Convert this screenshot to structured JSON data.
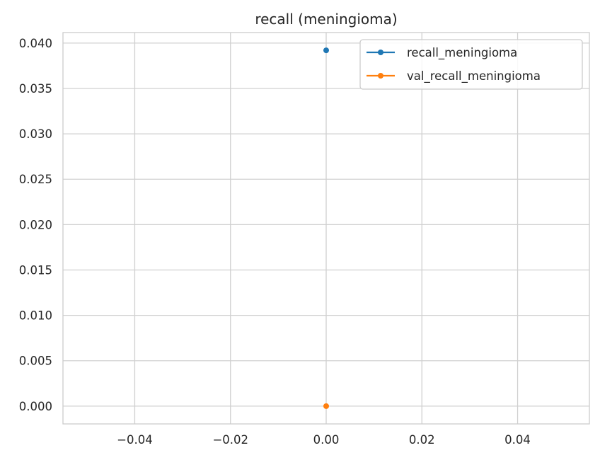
{
  "chart_data": {
    "type": "line",
    "title": "recall (meningioma)",
    "xlabel": "",
    "ylabel": "",
    "xlim": [
      -0.055,
      0.055
    ],
    "ylim": [
      -0.00196,
      0.04116
    ],
    "x_ticks": [
      -0.04,
      -0.02,
      0.0,
      0.02,
      0.04
    ],
    "x_tick_labels": [
      "−0.04",
      "−0.02",
      "0.00",
      "0.02",
      "0.04"
    ],
    "y_ticks": [
      0.0,
      0.005,
      0.01,
      0.015,
      0.02,
      0.025,
      0.03,
      0.035,
      0.04
    ],
    "y_tick_labels": [
      "0.000",
      "0.005",
      "0.010",
      "0.015",
      "0.020",
      "0.025",
      "0.030",
      "0.035",
      "0.040"
    ],
    "grid": true,
    "legend_position": "top-right",
    "series": [
      {
        "name": "recall_meningioma",
        "color": "#1f77b4",
        "x": [
          0
        ],
        "y": [
          0.0392
        ]
      },
      {
        "name": "val_recall_meningioma",
        "color": "#ff7f0e",
        "x": [
          0
        ],
        "y": [
          0.0
        ]
      }
    ]
  }
}
